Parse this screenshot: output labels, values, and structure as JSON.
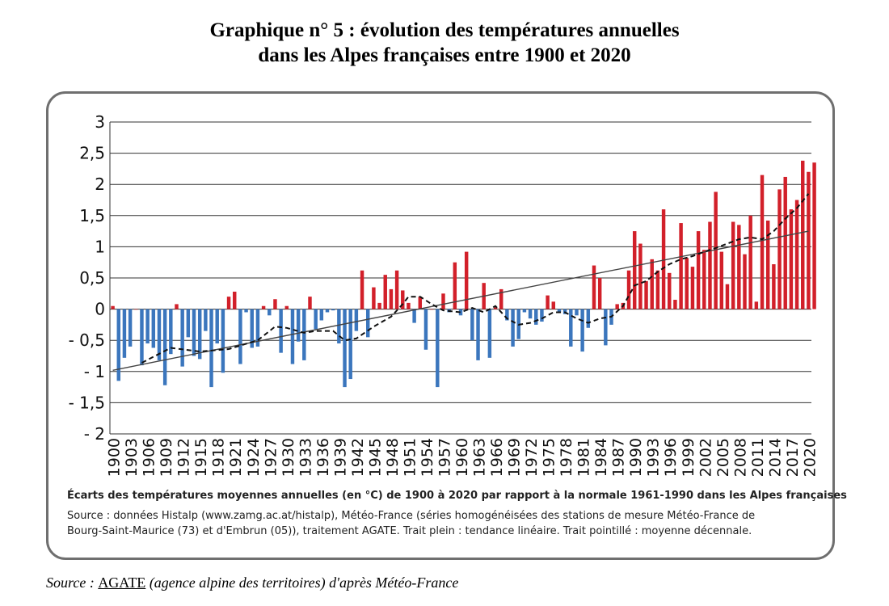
{
  "title_lines": [
    "Graphique n° 5 : évolution des températures annuelles",
    "dans les Alpes françaises entre 1900 et 2020"
  ],
  "caption": "Écarts des températures moyennes annuelles (en °C) de 1900 à 2020 par rapport à la normale 1961-1990 dans les Alpes françaises",
  "note_lines": [
    "Source : données Histalp (www.zamg.ac.at/histalp), Météo-France (séries homogénéisées des stations de mesure Météo-France de",
    "Bourg-Saint-Maurice (73) et d'Embrun (05)), traitement AGATE. Trait plein : tendance linéaire. Trait pointillé : moyenne décennale."
  ],
  "source": {
    "prefix": "Source : ",
    "link": "AGATE",
    "suffix": " (agence alpine des territoires) d'après Météo-France"
  },
  "colors": {
    "positive": "#d2202a",
    "negative": "#3b76bd",
    "trend": "#444444",
    "moving_average": "#111111",
    "grid": "#333333"
  },
  "chart_data": {
    "type": "bar",
    "ylim": [
      -2,
      3
    ],
    "yticks": [
      "3",
      "2,5",
      "2",
      "1,5",
      "1",
      "0,5",
      "0",
      "- 0,5",
      "- 1",
      "- 1,5",
      "- 2"
    ],
    "x_tick_labels": [
      "1900",
      "1903",
      "1906",
      "1909",
      "1912",
      "1915",
      "1918",
      "1921",
      "1924",
      "1927",
      "1930",
      "1933",
      "1936",
      "1939",
      "1942",
      "1945",
      "1948",
      "1951",
      "1954",
      "1957",
      "1960",
      "1963",
      "1966",
      "1969",
      "1972",
      "1975",
      "1978",
      "1981",
      "1984",
      "1987",
      "1990",
      "1993",
      "1996",
      "1999",
      "2002",
      "2005",
      "2008",
      "2011",
      "2014",
      "2017",
      "2020"
    ],
    "years_start": 1900,
    "years_end": 2020,
    "series": [
      {
        "values": [
          0.05,
          -1.15,
          -0.78,
          -0.6,
          0,
          -0.9,
          -0.55,
          -0.62,
          -0.82,
          -1.22,
          -0.72,
          0.08,
          -0.92,
          -0.45,
          -0.75,
          -0.8,
          -0.35,
          -1.25,
          -0.55,
          -1.02,
          0.2,
          0.28,
          -0.88,
          -0.05,
          -0.62,
          -0.6,
          0.05,
          -0.1,
          0.16,
          -0.7,
          0.05,
          -0.88,
          -0.52,
          -0.82,
          0.2,
          -0.32,
          -0.18,
          -0.05,
          -0.02,
          -0.55,
          -1.25,
          -1.12,
          -0.35,
          0.62,
          -0.45,
          0.35,
          0.1,
          0.55,
          0.32,
          0.62,
          0.3,
          0.1,
          -0.22,
          0.2,
          -0.65,
          0,
          -1.25,
          0.25,
          -0.05,
          0.75,
          -0.1,
          0.92,
          -0.5,
          -0.82,
          0.42,
          -0.78,
          0.03,
          0.32,
          -0.18,
          -0.6,
          -0.48,
          -0.05,
          -0.15,
          -0.25,
          -0.2,
          0.22,
          0.12,
          -0.05,
          -0.08,
          -0.6,
          -0.1,
          -0.68,
          -0.3,
          0.7,
          0.5,
          -0.58,
          -0.25,
          0.08,
          0.1,
          0.62,
          1.25,
          1.05,
          0.45,
          0.8,
          0.62,
          1.6,
          0.58,
          0.15,
          1.38,
          0.82,
          0.68,
          1.25,
          0.95,
          1.4,
          1.88,
          0.92,
          0.4,
          1.4,
          1.35,
          0.88,
          1.5,
          0.12,
          2.15,
          1.42,
          0.72,
          1.92,
          2.12,
          1.6,
          1.75,
          2.38,
          2.2,
          2.35
        ]
      },
      {
        "name": "Trait pointillé : moyenne décennale",
        "points": [
          [
            1905,
            -0.86
          ],
          [
            1910,
            -0.62
          ],
          [
            1915,
            -0.68
          ],
          [
            1920,
            -0.64
          ],
          [
            1925,
            -0.5
          ],
          [
            1928,
            -0.28
          ],
          [
            1930,
            -0.3
          ],
          [
            1933,
            -0.38
          ],
          [
            1935,
            -0.35
          ],
          [
            1938,
            -0.35
          ],
          [
            1940,
            -0.5
          ],
          [
            1942,
            -0.47
          ],
          [
            1945,
            -0.28
          ],
          [
            1948,
            -0.12
          ],
          [
            1950,
            0.08
          ],
          [
            1951,
            0.2
          ],
          [
            1953,
            0.2
          ],
          [
            1955,
            0.08
          ],
          [
            1957,
            -0.02
          ],
          [
            1960,
            -0.05
          ],
          [
            1962,
            0.02
          ],
          [
            1964,
            -0.05
          ],
          [
            1966,
            0.05
          ],
          [
            1968,
            -0.15
          ],
          [
            1970,
            -0.25
          ],
          [
            1972,
            -0.22
          ],
          [
            1974,
            -0.15
          ],
          [
            1976,
            -0.05
          ],
          [
            1978,
            -0.05
          ],
          [
            1980,
            -0.15
          ],
          [
            1982,
            -0.22
          ],
          [
            1984,
            -0.15
          ],
          [
            1986,
            -0.12
          ],
          [
            1988,
            0.05
          ],
          [
            1990,
            0.38
          ],
          [
            1992,
            0.45
          ],
          [
            1994,
            0.6
          ],
          [
            1996,
            0.72
          ],
          [
            1998,
            0.8
          ],
          [
            2000,
            0.85
          ],
          [
            2002,
            0.92
          ],
          [
            2004,
            0.98
          ],
          [
            2006,
            1.05
          ],
          [
            2008,
            1.12
          ],
          [
            2010,
            1.15
          ],
          [
            2012,
            1.12
          ],
          [
            2014,
            1.25
          ],
          [
            2016,
            1.45
          ],
          [
            2018,
            1.62
          ],
          [
            2020,
            1.85
          ]
        ]
      },
      {
        "name": "Trait plein : tendance linéaire",
        "points": [
          [
            1900,
            -0.98
          ],
          [
            2020,
            1.25
          ]
        ]
      }
    ]
  }
}
